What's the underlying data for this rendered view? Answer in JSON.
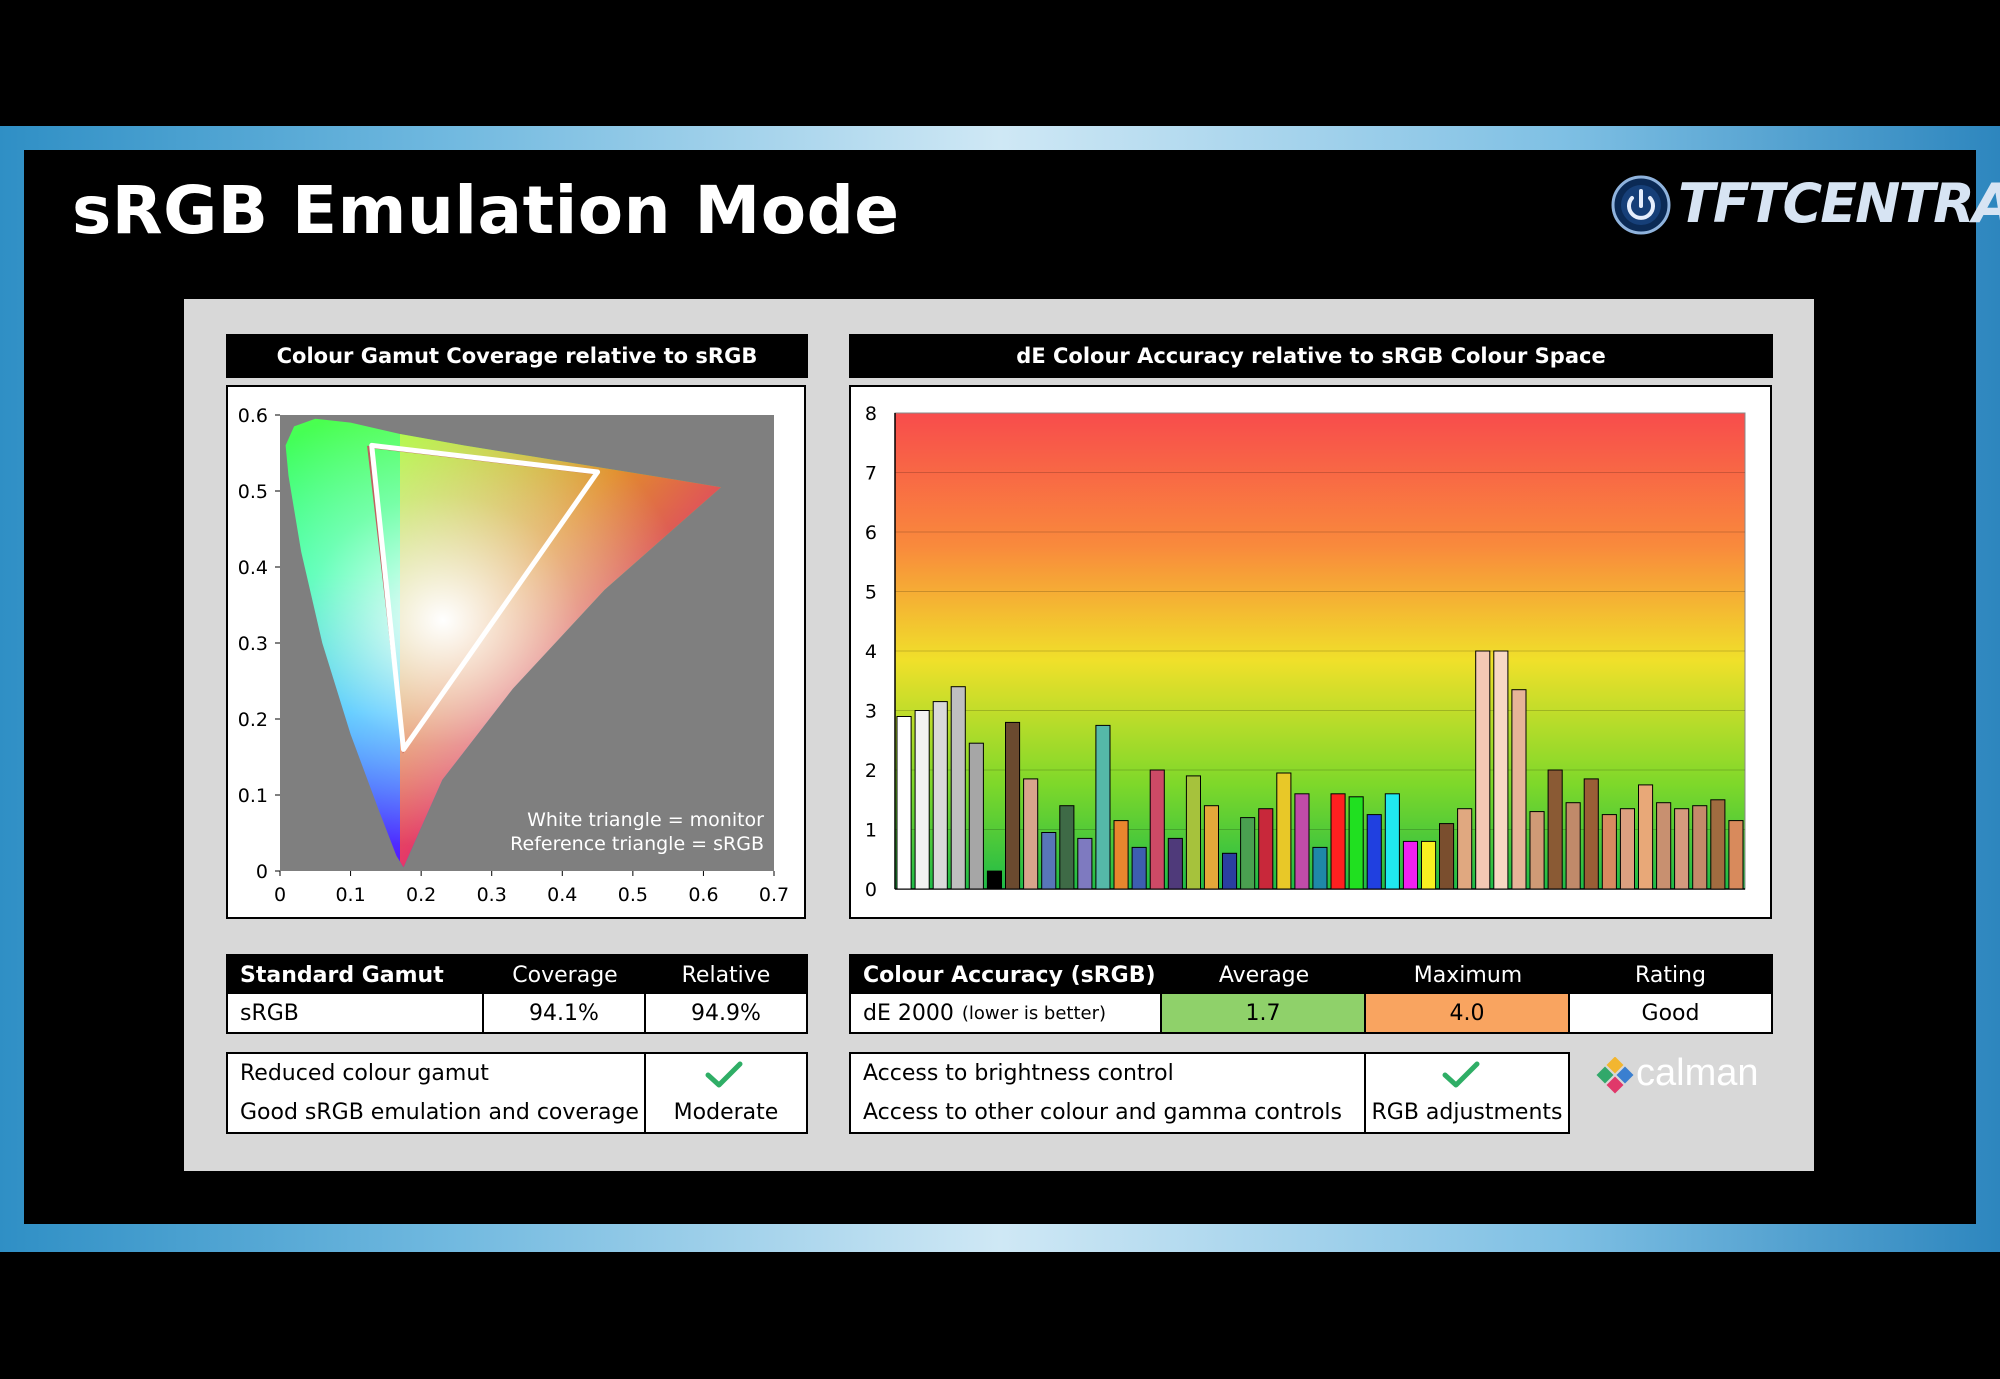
{
  "slide": {
    "title": "sRGB Emulation Mode",
    "logo_text": "TFTCENTRAL",
    "logo_icon": "power-icon"
  },
  "gamut_chart": {
    "header": "Colour Gamut Coverage relative to sRGB",
    "note_line1": "White triangle = monitor",
    "note_line2": "Reference triangle = sRGB"
  },
  "de_chart": {
    "header": "dE Colour Accuracy relative to sRGB Colour Space"
  },
  "chart_data": [
    {
      "type": "scatter",
      "title": "Colour Gamut Coverage relative to sRGB",
      "xlim": [
        0,
        0.7
      ],
      "ylim": [
        0,
        0.6
      ],
      "x_ticks": [
        "0",
        "0.1",
        "0.2",
        "0.3",
        "0.4",
        "0.5",
        "0.6",
        "0.7"
      ],
      "y_ticks": [
        "0",
        "0.1",
        "0.2",
        "0.3",
        "0.4",
        "0.5",
        "0.6"
      ],
      "series": [
        {
          "x": [
            0.13,
            0.45,
            0.175
          ],
          "y": [
            0.56,
            0.525,
            0.16
          ]
        },
        {
          "x": [
            0.125,
            0.448,
            0.175
          ],
          "y": [
            0.558,
            0.523,
            0.158
          ]
        }
      ]
    },
    {
      "type": "bar",
      "title": "dE Colour Accuracy relative to sRGB Colour Space",
      "ylim": [
        0,
        8
      ],
      "y_ticks": [
        "0",
        "1",
        "2",
        "3",
        "4",
        "5",
        "6",
        "7",
        "8"
      ],
      "values": [
        2.9,
        3.0,
        3.15,
        3.4,
        2.45,
        0.3,
        2.8,
        1.85,
        0.95,
        1.4,
        0.85,
        2.75,
        1.15,
        0.7,
        2.0,
        0.85,
        1.9,
        1.4,
        0.6,
        1.2,
        1.35,
        1.95,
        1.6,
        0.7,
        1.6,
        1.55,
        1.25,
        1.6,
        0.8,
        0.8,
        1.1,
        1.35,
        4.0,
        4.0,
        3.35,
        1.3,
        2.0,
        1.45,
        1.85,
        1.25,
        1.35,
        1.75,
        1.45,
        1.35,
        1.4,
        1.5,
        1.15
      ],
      "colors": [
        "#ffffff",
        "#f2f2f2",
        "#d9d9d9",
        "#bfbfbf",
        "#a6a6a6",
        "#000000",
        "#6b4a2f",
        "#d8a48c",
        "#5876b8",
        "#3e6a46",
        "#7e7ac0",
        "#55b8a8",
        "#e8862e",
        "#3d5eb0",
        "#cc4a66",
        "#4f3a7a",
        "#a6c23c",
        "#e4a83a",
        "#2a3fa0",
        "#4aa050",
        "#c8283a",
        "#e8c828",
        "#c04ca8",
        "#1f88a8",
        "#ff2020",
        "#20e020",
        "#2040e0",
        "#20e8f0",
        "#f020f0",
        "#f8f020",
        "#7a4e2e",
        "#e0a880",
        "#f4c8b4",
        "#f8d8c4",
        "#e6b498",
        "#cf9a76",
        "#8a5a34",
        "#c08a6a",
        "#9a5e36",
        "#d88a60",
        "#dca080",
        "#e8a878",
        "#c89070",
        "#d49a7e",
        "#c48a6a",
        "#a06c40",
        "#d88a5c"
      ]
    }
  ],
  "gamut_table": {
    "headers": [
      "Standard Gamut",
      "Coverage",
      "Relative"
    ],
    "row": [
      "sRGB",
      "94.1%",
      "94.9%"
    ],
    "notes": [
      "Reduced colour gamut",
      "Good sRGB emulation and coverage"
    ],
    "rating_icon": "check-icon",
    "rating": "Moderate"
  },
  "accuracy_table": {
    "headers": [
      "Colour Accuracy (sRGB)",
      "Average",
      "Maximum",
      "Rating"
    ],
    "row_label": "dE 2000",
    "row_label_small": "(lower is better)",
    "average": "1.7",
    "maximum": "4.0",
    "rating": "Good",
    "average_color": "#8fd16a",
    "maximum_color": "#f9a460",
    "notes": [
      "Access to brightness control",
      "Access to other colour and gamma controls"
    ],
    "controls_icon": "check-icon",
    "controls": "RGB adjustments"
  },
  "calman_logo_text": "calman",
  "accent_check_color": "#2fae66"
}
